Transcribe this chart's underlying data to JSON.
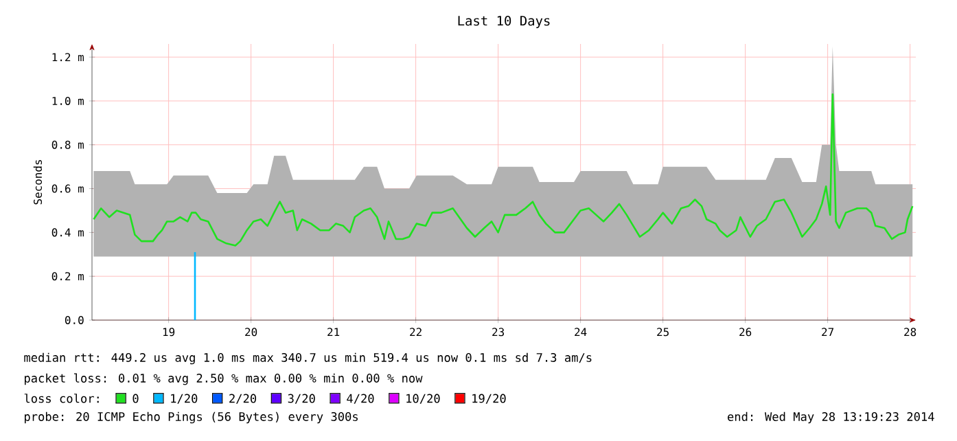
{
  "chart_data": {
    "type": "line",
    "title": "Last 10 Days",
    "ylabel": "Seconds",
    "xlim": [
      18.07,
      28.07
    ],
    "xticks": [
      19,
      20,
      21,
      22,
      23,
      24,
      25,
      26,
      27,
      28
    ],
    "ylim": [
      0,
      1.26
    ],
    "yticks": [
      {
        "value": 0,
        "label": "0.0"
      },
      {
        "value": 0.2,
        "label": "0.2 m"
      },
      {
        "value": 0.4,
        "label": "0.4 m"
      },
      {
        "value": 0.6,
        "label": "0.6 m"
      },
      {
        "value": 0.8,
        "label": "0.8 m"
      },
      {
        "value": 1.0,
        "label": "1.0 m"
      },
      {
        "value": 1.2,
        "label": "1.2 m"
      }
    ],
    "grid": true,
    "legend": "bottom",
    "legend_title": "loss color:",
    "series": [
      {
        "name": "0",
        "color": "#20e020",
        "x": [
          18.09,
          18.18,
          18.28,
          18.37,
          18.53,
          18.59,
          18.67,
          18.81,
          18.87,
          18.92,
          18.98,
          19.06,
          19.14,
          19.23,
          19.28,
          19.33,
          19.39,
          19.48,
          19.59,
          19.7,
          19.81,
          19.87,
          19.95,
          20.03,
          20.12,
          20.2,
          20.28,
          20.35,
          20.42,
          20.51,
          20.56,
          20.62,
          20.73,
          20.84,
          20.95,
          21.03,
          21.12,
          21.2,
          21.26,
          21.37,
          21.45,
          21.53,
          21.62,
          21.67,
          21.76,
          21.84,
          21.92,
          22.01,
          22.12,
          22.2,
          22.31,
          22.45,
          22.62,
          22.72,
          22.83,
          22.92,
          23.0,
          23.08,
          23.22,
          23.33,
          23.42,
          23.5,
          23.58,
          23.69,
          23.8,
          23.92,
          24.0,
          24.1,
          24.19,
          24.28,
          24.38,
          24.47,
          24.56,
          24.64,
          24.72,
          24.83,
          24.94,
          25.0,
          25.11,
          25.22,
          25.31,
          25.39,
          25.47,
          25.53,
          25.64,
          25.69,
          25.78,
          25.89,
          25.94,
          26.06,
          26.14,
          26.25,
          26.36,
          26.47,
          26.56,
          26.69,
          26.78,
          26.86,
          26.93,
          26.98,
          27.03,
          27.06,
          27.1,
          27.14,
          27.22,
          27.36,
          27.47,
          27.53,
          27.58,
          27.69,
          27.78,
          27.86,
          27.94,
          27.97,
          28.03
        ],
        "values": [
          0.46,
          0.51,
          0.47,
          0.5,
          0.48,
          0.39,
          0.36,
          0.36,
          0.39,
          0.41,
          0.45,
          0.45,
          0.47,
          0.45,
          0.49,
          0.49,
          0.46,
          0.45,
          0.37,
          0.35,
          0.34,
          0.36,
          0.41,
          0.45,
          0.46,
          0.43,
          0.49,
          0.54,
          0.49,
          0.5,
          0.41,
          0.46,
          0.44,
          0.41,
          0.41,
          0.44,
          0.43,
          0.4,
          0.47,
          0.5,
          0.51,
          0.47,
          0.37,
          0.45,
          0.37,
          0.37,
          0.38,
          0.44,
          0.43,
          0.49,
          0.49,
          0.51,
          0.42,
          0.38,
          0.42,
          0.45,
          0.4,
          0.48,
          0.48,
          0.51,
          0.54,
          0.48,
          0.44,
          0.4,
          0.4,
          0.46,
          0.5,
          0.51,
          0.48,
          0.45,
          0.49,
          0.53,
          0.48,
          0.43,
          0.38,
          0.41,
          0.46,
          0.49,
          0.44,
          0.51,
          0.52,
          0.55,
          0.52,
          0.46,
          0.44,
          0.41,
          0.38,
          0.41,
          0.47,
          0.38,
          0.43,
          0.46,
          0.54,
          0.55,
          0.49,
          0.38,
          0.42,
          0.46,
          0.53,
          0.61,
          0.48,
          1.03,
          0.45,
          0.42,
          0.49,
          0.51,
          0.51,
          0.49,
          0.43,
          0.42,
          0.37,
          0.39,
          0.4,
          0.46,
          0.52
        ],
        "lower": [
          0.29,
          0.29,
          0.29,
          0.29,
          0.29,
          0.29,
          0.29,
          0.29,
          0.29,
          0.29,
          0.29,
          0.29,
          0.29,
          0.29,
          0.29,
          0.29,
          0.29,
          0.29,
          0.29,
          0.29,
          0.29,
          0.29,
          0.29,
          0.29,
          0.29,
          0.29,
          0.29,
          0.29,
          0.29,
          0.29,
          0.29,
          0.29,
          0.29,
          0.29,
          0.29,
          0.29,
          0.29,
          0.29,
          0.29,
          0.29,
          0.29,
          0.29,
          0.29,
          0.29,
          0.29,
          0.29,
          0.29,
          0.29,
          0.29,
          0.29,
          0.29,
          0.29,
          0.29,
          0.29,
          0.29,
          0.29,
          0.29,
          0.29,
          0.29,
          0.29,
          0.29,
          0.29,
          0.29,
          0.29,
          0.29,
          0.29,
          0.29,
          0.29,
          0.29,
          0.29,
          0.29,
          0.29,
          0.29,
          0.29,
          0.29,
          0.29,
          0.29,
          0.29,
          0.29,
          0.29,
          0.29,
          0.29,
          0.29,
          0.29,
          0.29,
          0.29,
          0.29,
          0.29,
          0.29,
          0.29,
          0.29,
          0.29,
          0.29,
          0.29,
          0.29,
          0.29,
          0.29,
          0.29,
          0.29,
          0.29,
          0.29,
          0.29,
          0.29,
          0.29,
          0.29,
          0.29,
          0.29,
          0.29,
          0.29,
          0.29,
          0.29,
          0.29,
          0.29,
          0.29,
          0.29
        ],
        "upper": [
          0.68,
          0.68,
          0.68,
          0.68,
          0.68,
          0.62,
          0.62,
          0.62,
          0.62,
          0.62,
          0.62,
          0.66,
          0.66,
          0.66,
          0.66,
          0.66,
          0.66,
          0.66,
          0.58,
          0.58,
          0.58,
          0.58,
          0.58,
          0.62,
          0.62,
          0.62,
          0.75,
          0.75,
          0.75,
          0.64,
          0.64,
          0.64,
          0.64,
          0.64,
          0.64,
          0.64,
          0.64,
          0.64,
          0.64,
          0.7,
          0.7,
          0.7,
          0.6,
          0.6,
          0.6,
          0.6,
          0.6,
          0.66,
          0.66,
          0.66,
          0.66,
          0.66,
          0.62,
          0.62,
          0.62,
          0.62,
          0.7,
          0.7,
          0.7,
          0.7,
          0.7,
          0.63,
          0.63,
          0.63,
          0.63,
          0.63,
          0.68,
          0.68,
          0.68,
          0.68,
          0.68,
          0.68,
          0.68,
          0.62,
          0.62,
          0.62,
          0.62,
          0.7,
          0.7,
          0.7,
          0.7,
          0.7,
          0.7,
          0.7,
          0.64,
          0.64,
          0.64,
          0.64,
          0.64,
          0.64,
          0.64,
          0.64,
          0.74,
          0.74,
          0.74,
          0.63,
          0.63,
          0.63,
          0.8,
          0.8,
          0.8,
          1.25,
          0.8,
          0.68,
          0.68,
          0.68,
          0.68,
          0.68,
          0.62,
          0.62,
          0.62,
          0.62,
          0.62,
          0.62,
          0.62
        ]
      },
      {
        "name": "1/20",
        "color": "#00b8ff",
        "x": [
          19.32,
          19.32
        ],
        "values": [
          0,
          0.31
        ]
      },
      {
        "name": "2/20",
        "color": "#0059ff"
      },
      {
        "name": "3/20",
        "color": "#5e00ff"
      },
      {
        "name": "4/20",
        "color": "#7e00ff"
      },
      {
        "name": "10/20",
        "color": "#dd00ff"
      },
      {
        "name": "19/20",
        "color": "#ff0000"
      }
    ],
    "annotations": [
      "median rtt:  449.2 us avg  1.0 ms max  340.7 us min  519.4 us now  0.1 ms sd  7.3   am/s",
      "packet loss: 0.01 % avg  2.50 % max  0.00 % min  0.00 % now",
      "probe:        20 ICMP Echo Pings (56 Bytes) every 300s",
      "end: Wed May 28 13:19:23 2014"
    ]
  }
}
